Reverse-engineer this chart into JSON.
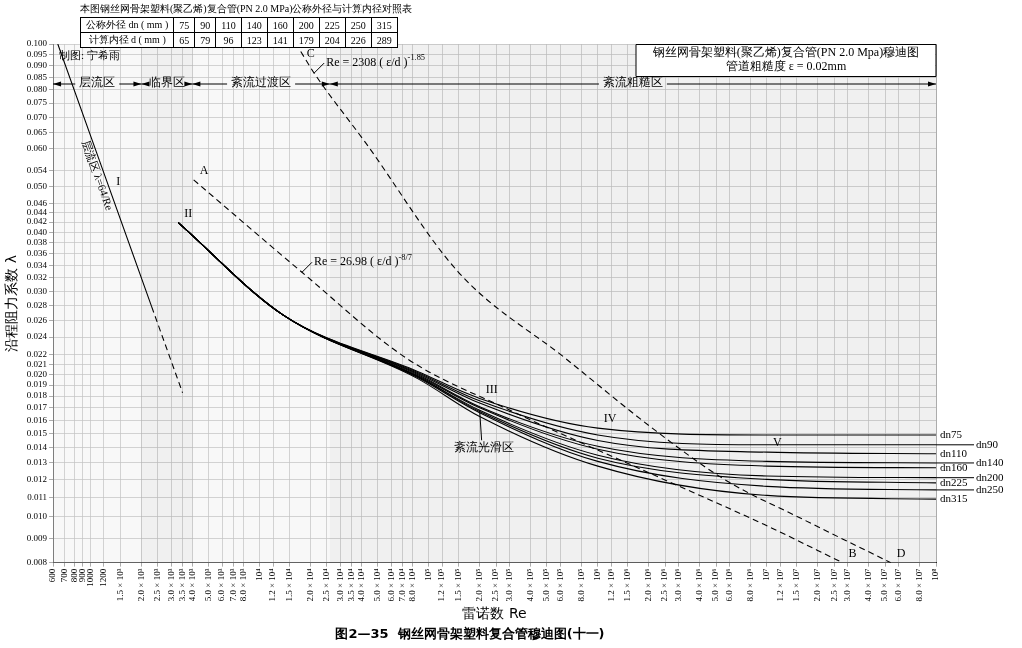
{
  "chart_data": [
    {
      "type": "other",
      "title": "本图钢丝网骨架塑料(聚乙烯)复合管(PN 2.0 MPa)公称外径与计算内径对照表",
      "xlabel": "公称外径 dn ( mm )",
      "ylabel": "计算内径 d ( mm )",
      "data_labels": true,
      "categories": [
        "75",
        "90",
        "110",
        "140",
        "160",
        "200",
        "225",
        "250",
        "315"
      ],
      "values": [
        65,
        79,
        96,
        123,
        141,
        179,
        204,
        226,
        289
      ]
    },
    {
      "type": "line",
      "title": "图2—35  钢丝网骨架塑料复合管穆迪图(十一)",
      "subtitle": "钢丝网骨架塑料(聚乙烯)复合管(PN 2.0 Mpa)穆迪图",
      "xlabel": "雷诺数 Re",
      "ylabel": "沿程阻力系数 λ",
      "log": "xy",
      "grid": true,
      "legend": "right",
      "xlim": [
        600,
        100000000
      ],
      "ylim": [
        0.008,
        0.1
      ],
      "xticks": [
        600,
        700,
        800,
        900,
        1000,
        1200,
        {
          "value": 1500,
          "label": "1.5 × 10³"
        },
        {
          "value": 2000,
          "label": "2.0 × 10³"
        },
        {
          "value": 2500,
          "label": "2.5 × 10³"
        },
        {
          "value": 3000,
          "label": "3.0 × 10³"
        },
        {
          "value": 3500,
          "label": "3.5 × 10³"
        },
        {
          "value": 4000,
          "label": "4.0 × 10³"
        },
        {
          "value": 5000,
          "label": "5.0 × 10³"
        },
        {
          "value": 6000,
          "label": "6.0 × 10³"
        },
        {
          "value": 7000,
          "label": "7.0 × 10³"
        },
        {
          "value": 8000,
          "label": "8.0 × 10³"
        },
        {
          "value": 10000,
          "label": "10⁴"
        },
        {
          "value": 12000,
          "label": "1.2 × 10⁴"
        },
        {
          "value": 15000,
          "label": "1.5 × 10⁴"
        },
        {
          "value": 20000,
          "label": "2.0 × 10⁴"
        },
        {
          "value": 25000,
          "label": "2.5 × 10⁴"
        },
        {
          "value": 30000,
          "label": "3.0 × 10⁴"
        },
        {
          "value": 35000,
          "label": "3.5 × 10⁴"
        },
        {
          "value": 40000,
          "label": "4.0 × 10⁴"
        },
        {
          "value": 50000,
          "label": "5.0 × 10⁴"
        },
        {
          "value": 60000,
          "label": "6.0 × 10⁴"
        },
        {
          "value": 70000,
          "label": "7.0 × 10⁴"
        },
        {
          "value": 80000,
          "label": "8.0 × 10⁴"
        },
        {
          "value": 100000,
          "label": "10⁵"
        },
        {
          "value": 120000,
          "label": "1.2 × 10⁵"
        },
        {
          "value": 150000,
          "label": "1.5 × 10⁵"
        },
        {
          "value": 200000,
          "label": "2.0 × 10⁵"
        },
        {
          "value": 250000,
          "label": "2.5 × 10⁵"
        },
        {
          "value": 300000,
          "label": "3.0 × 10⁵"
        },
        {
          "value": 400000,
          "label": "4.0 × 10⁵"
        },
        {
          "value": 500000,
          "label": "5.0 × 10⁵"
        },
        {
          "value": 600000,
          "label": "6.0 × 10⁵"
        },
        {
          "value": 800000,
          "label": "8.0 × 10⁵"
        },
        {
          "value": 1000000,
          "label": "10⁶"
        },
        {
          "value": 1200000,
          "label": "1.2 × 10⁶"
        },
        {
          "value": 1500000,
          "label": "1.5 × 10⁶"
        },
        {
          "value": 2000000,
          "label": "2.0 × 10⁶"
        },
        {
          "value": 2500000,
          "label": "2.5 × 10⁶"
        },
        {
          "value": 3000000,
          "label": "3.0 × 10⁶"
        },
        {
          "value": 4000000,
          "label": "4.0 × 10⁶"
        },
        {
          "value": 5000000,
          "label": "5.0 × 10⁶"
        },
        {
          "value": 6000000,
          "label": "6.0 × 10⁶"
        },
        {
          "value": 8000000,
          "label": "8.0 × 10⁶"
        },
        {
          "value": 10000000,
          "label": "10⁷"
        },
        {
          "value": 12000000,
          "label": "1.2 × 10⁷"
        },
        {
          "value": 15000000,
          "label": "1.5 × 10⁷"
        },
        {
          "value": 20000000,
          "label": "2.0 × 10⁷"
        },
        {
          "value": 25000000,
          "label": "2.5 × 10⁷"
        },
        {
          "value": 30000000,
          "label": "3.0 × 10⁷"
        },
        {
          "value": 40000000,
          "label": "4.0 × 10⁷"
        },
        {
          "value": 50000000,
          "label": "5.0 × 10⁷"
        },
        {
          "value": 60000000,
          "label": "6.0 × 10⁷"
        },
        {
          "value": 80000000,
          "label": "8.0 × 10⁷"
        },
        {
          "value": 100000000,
          "label": "10⁸"
        }
      ],
      "yticks": [
        {
          "value": 0.008,
          "label": "0.008"
        },
        {
          "value": 0.009,
          "label": "0.009"
        },
        {
          "value": 0.01,
          "label": "0.010"
        },
        {
          "value": 0.011,
          "label": "0.011"
        },
        {
          "value": 0.012,
          "label": "0.012"
        },
        {
          "value": 0.013,
          "label": "0.013"
        },
        {
          "value": 0.014,
          "label": "0.014"
        },
        {
          "value": 0.015,
          "label": "0.015"
        },
        {
          "value": 0.016,
          "label": "0.016"
        },
        {
          "value": 0.017,
          "label": "0.017"
        },
        {
          "value": 0.018,
          "label": "0.018"
        },
        {
          "value": 0.019,
          "label": "0.019"
        },
        {
          "value": 0.02,
          "label": "0.020"
        },
        {
          "value": 0.021,
          "label": "0.021"
        },
        {
          "value": 0.022,
          "label": "0.022"
        },
        {
          "value": 0.024,
          "label": "0.024"
        },
        {
          "value": 0.026,
          "label": "0.026"
        },
        {
          "value": 0.028,
          "label": "0.028"
        },
        {
          "value": 0.03,
          "label": "0.030"
        },
        {
          "value": 0.032,
          "label": "0.032"
        },
        {
          "value": 0.034,
          "label": "0.034"
        },
        {
          "value": 0.036,
          "label": "0.036"
        },
        {
          "value": 0.038,
          "label": "0.038"
        },
        {
          "value": 0.04,
          "label": "0.040"
        },
        {
          "value": 0.042,
          "label": "0.042"
        },
        {
          "value": 0.044,
          "label": "0.044"
        },
        {
          "value": 0.046,
          "label": "0.046"
        },
        {
          "value": 0.05,
          "label": "0.050"
        },
        {
          "value": 0.054,
          "label": "0.054"
        },
        {
          "value": 0.06,
          "label": "0.060"
        },
        {
          "value": 0.065,
          "label": "0.065"
        },
        {
          "value": 0.07,
          "label": "0.070"
        },
        {
          "value": 0.075,
          "label": "0.075"
        },
        {
          "value": 0.08,
          "label": "0.080"
        },
        {
          "value": 0.085,
          "label": "0.085"
        },
        {
          "value": 0.09,
          "label": "0.090"
        },
        {
          "value": 0.095,
          "label": "0.095"
        },
        {
          "value": 0.1,
          "label": "0.100"
        }
      ],
      "bands": [
        {
          "axis": "x",
          "from": 600,
          "to": 2000,
          "label": "层流区",
          "color": "#f2f2f2"
        },
        {
          "axis": "x",
          "from": 2000,
          "to": 4000,
          "label": "临界区",
          "color": "#e4e4e4"
        },
        {
          "axis": "x",
          "from": 4000,
          "to": 26000,
          "label": "紊流过渡区",
          "color": "#f2f2f2"
        },
        {
          "axis": "x",
          "from": 26000,
          "to": 100000000,
          "label": "紊流粗糙区",
          "color": "#e4e4e4"
        }
      ],
      "series": [
        {
          "type": "line",
          "name": "层流区 λ=64/Re",
          "color": "#000000",
          "line_style": "solid",
          "x": [
            640,
            2300
          ],
          "values": [
            0.1,
            0.0278
          ]
        },
        {
          "type": "line",
          "color": "#000000",
          "line_style": "dashed",
          "x": [
            2300,
            3500
          ],
          "values": [
            0.0278,
            0.0183
          ]
        },
        {
          "type": "line",
          "color": "#000000",
          "line_style": "dashed",
          "x": [
            4070,
            17800,
            74500,
            303000,
            2100000,
            9600000,
            28000000
          ],
          "values": [
            0.0516,
            0.0329,
            0.0216,
            0.0168,
            0.0123,
            0.00964,
            0.008
          ]
        },
        {
          "type": "line",
          "color": "#000000",
          "line_style": "dashed",
          "x": [
            17500,
            21000,
            42500,
            150000,
            647000,
            2100000,
            5600000,
            16600000,
            54000000
          ],
          "values": [
            0.0964,
            0.0868,
            0.0617,
            0.0329,
            0.0216,
            0.0154,
            0.012,
            0.00985,
            0.008
          ]
        },
        {
          "type": "line",
          "name": "dn75",
          "color": "#000000",
          "line_style": "solid",
          "x": [
            3300,
            13800,
            86000,
            200000,
            1000000,
            10000000,
            100000000
          ],
          "values": [
            0.0419,
            0.0267,
            0.0203,
            0.0178,
            0.0154,
            0.0149,
            0.0149
          ]
        },
        {
          "type": "line",
          "name": "dn90",
          "color": "#000000",
          "line_style": "solid",
          "x": [
            3300,
            13800,
            86000,
            200000,
            1000000,
            10000000,
            100000000
          ],
          "values": [
            0.0419,
            0.0267,
            0.0202,
            0.0176,
            0.0149,
            0.0142,
            0.0142
          ]
        },
        {
          "type": "line",
          "name": "dn110",
          "color": "#000000",
          "line_style": "solid",
          "x": [
            3300,
            13800,
            86000,
            200000,
            1000000,
            10000000,
            100000000
          ],
          "values": [
            0.0419,
            0.0267,
            0.0201,
            0.0174,
            0.0145,
            0.0137,
            0.0136
          ]
        },
        {
          "type": "line",
          "name": "dn140",
          "color": "#000000",
          "line_style": "solid",
          "x": [
            3300,
            13800,
            86000,
            200000,
            1000000,
            10000000,
            100000000
          ],
          "values": [
            0.0419,
            0.0267,
            0.02,
            0.0171,
            0.0141,
            0.0131,
            0.013
          ]
        },
        {
          "type": "line",
          "name": "dn160",
          "color": "#000000",
          "line_style": "solid",
          "x": [
            3300,
            13800,
            86000,
            200000,
            1000000,
            10000000,
            100000000
          ],
          "values": [
            0.0419,
            0.0267,
            0.0199,
            0.017,
            0.0139,
            0.0128,
            0.0127
          ]
        },
        {
          "type": "line",
          "name": "dn200",
          "color": "#000000",
          "line_style": "solid",
          "x": [
            3300,
            13800,
            86000,
            200000,
            1000000,
            10000000,
            100000000
          ],
          "values": [
            0.0419,
            0.0267,
            0.0198,
            0.0168,
            0.0135,
            0.0122,
            0.0121
          ]
        },
        {
          "type": "line",
          "name": "dn225",
          "color": "#000000",
          "line_style": "solid",
          "x": [
            3300,
            13800,
            86000,
            200000,
            1000000,
            10000000,
            100000000
          ],
          "values": [
            0.0419,
            0.0267,
            0.0198,
            0.0167,
            0.0133,
            0.012,
            0.0118
          ]
        },
        {
          "type": "line",
          "name": "dn250",
          "color": "#000000",
          "line_style": "solid",
          "x": [
            3300,
            13800,
            86000,
            200000,
            1000000,
            10000000,
            100000000
          ],
          "values": [
            0.0419,
            0.0267,
            0.0197,
            0.0166,
            0.0131,
            0.0116,
            0.0114
          ]
        },
        {
          "type": "line",
          "name": "dn315",
          "color": "#000000",
          "line_style": "solid",
          "x": [
            3300,
            13800,
            86000,
            200000,
            1000000,
            10000000,
            100000000
          ],
          "values": [
            0.0419,
            0.0267,
            0.0196,
            0.0163,
            0.0128,
            0.0111,
            0.0109
          ]
        }
      ],
      "annotations": [
        "管道粗糙度 ε = 0.02mm",
        "制图: 宁希雨",
        {
          "text": "紊流光滑区",
          "x": 200000,
          "y": 0.0168
        },
        {
          "text": "Re = 26.98 ( ε/d )$^{-8/7}$",
          "x": 17800,
          "y": 0.0329
        },
        {
          "text": "Re = 2308 ( ε/d )$^{-1.85}$",
          "x": 21000,
          "y": 0.0868
        },
        {
          "text": "I",
          "x": 1306,
          "y": 0.049
        },
        {
          "text": "II",
          "x": 3300,
          "y": 0.0419
        },
        {
          "text": "III",
          "x": 200000,
          "y": 0.0178
        },
        {
          "text": "IV",
          "x": 1000000,
          "y": 0.0154
        },
        {
          "text": "V",
          "x": 10000000,
          "y": 0.0137
        },
        {
          "text": "A",
          "x": 4070,
          "y": 0.0516
        },
        {
          "text": "B",
          "x": 28000000,
          "y": 0.008
        },
        {
          "text": "C",
          "x": 17500,
          "y": 0.0964
        },
        {
          "text": "D",
          "x": 54000000,
          "y": 0.008
        }
      ]
    }
  ]
}
